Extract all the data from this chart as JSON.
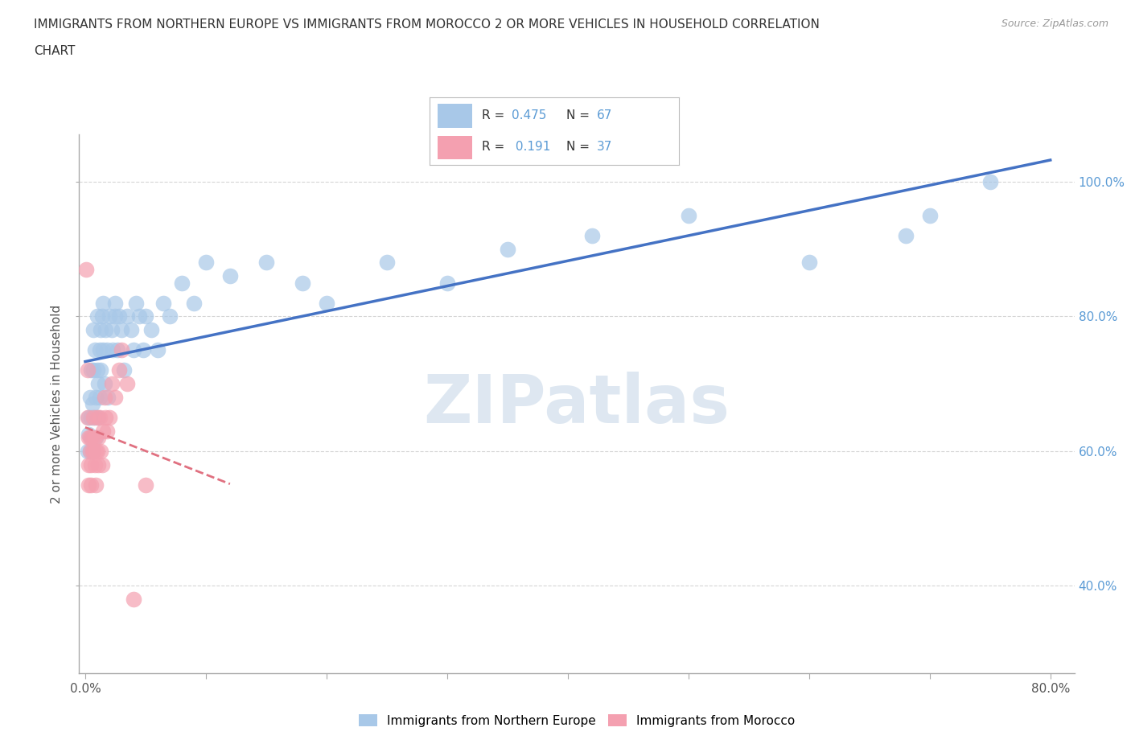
{
  "title_line1": "IMMIGRANTS FROM NORTHERN EUROPE VS IMMIGRANTS FROM MOROCCO 2 OR MORE VEHICLES IN HOUSEHOLD CORRELATION",
  "title_line2": "CHART",
  "source": "Source: ZipAtlas.com",
  "ylabel": "2 or more Vehicles in Household",
  "xlim": [
    -0.005,
    0.82
  ],
  "ylim": [
    0.27,
    1.07
  ],
  "x_tick_positions": [
    0.0,
    0.1,
    0.2,
    0.3,
    0.4,
    0.5,
    0.6,
    0.7,
    0.8
  ],
  "x_tick_labels": [
    "0.0%",
    "",
    "",
    "",
    "",
    "",
    "",
    "",
    "80.0%"
  ],
  "y_tick_positions": [
    0.4,
    0.6,
    0.8,
    1.0
  ],
  "y_tick_labels": [
    "40.0%",
    "60.0%",
    "80.0%",
    "100.0%"
  ],
  "watermark": "ZIPatlas",
  "color_blue": "#a8c8e8",
  "color_pink": "#f4a0b0",
  "line_blue": "#4472c4",
  "line_pink": "#e07080",
  "ne_x": [
    0.002,
    0.003,
    0.003,
    0.004,
    0.004,
    0.005,
    0.005,
    0.005,
    0.006,
    0.006,
    0.007,
    0.007,
    0.008,
    0.008,
    0.009,
    0.009,
    0.01,
    0.01,
    0.011,
    0.011,
    0.012,
    0.012,
    0.013,
    0.013,
    0.014,
    0.015,
    0.015,
    0.016,
    0.017,
    0.018,
    0.019,
    0.02,
    0.022,
    0.023,
    0.025,
    0.025,
    0.027,
    0.028,
    0.03,
    0.032,
    0.035,
    0.038,
    0.04,
    0.042,
    0.045,
    0.048,
    0.05,
    0.055,
    0.06,
    0.065,
    0.07,
    0.08,
    0.09,
    0.1,
    0.12,
    0.15,
    0.18,
    0.2,
    0.25,
    0.3,
    0.35,
    0.42,
    0.5,
    0.6,
    0.68,
    0.7,
    0.75
  ],
  "ne_y": [
    0.6,
    0.65,
    0.625,
    0.6,
    0.68,
    0.62,
    0.65,
    0.72,
    0.6,
    0.67,
    0.78,
    0.72,
    0.65,
    0.75,
    0.68,
    0.62,
    0.8,
    0.72,
    0.7,
    0.65,
    0.75,
    0.68,
    0.78,
    0.72,
    0.8,
    0.75,
    0.82,
    0.7,
    0.78,
    0.75,
    0.68,
    0.8,
    0.78,
    0.75,
    0.82,
    0.8,
    0.75,
    0.8,
    0.78,
    0.72,
    0.8,
    0.78,
    0.75,
    0.82,
    0.8,
    0.75,
    0.8,
    0.78,
    0.75,
    0.82,
    0.8,
    0.85,
    0.82,
    0.88,
    0.86,
    0.88,
    0.85,
    0.82,
    0.88,
    0.85,
    0.9,
    0.92,
    0.95,
    0.88,
    0.92,
    0.95,
    1.0
  ],
  "mo_x": [
    0.001,
    0.002,
    0.002,
    0.003,
    0.003,
    0.003,
    0.004,
    0.004,
    0.005,
    0.005,
    0.006,
    0.006,
    0.007,
    0.007,
    0.008,
    0.008,
    0.009,
    0.009,
    0.01,
    0.01,
    0.011,
    0.011,
    0.012,
    0.013,
    0.014,
    0.015,
    0.016,
    0.017,
    0.018,
    0.02,
    0.022,
    0.025,
    0.028,
    0.03,
    0.035,
    0.04,
    0.05
  ],
  "mo_y": [
    0.87,
    0.65,
    0.72,
    0.62,
    0.58,
    0.55,
    0.62,
    0.6,
    0.55,
    0.58,
    0.62,
    0.6,
    0.65,
    0.6,
    0.58,
    0.62,
    0.55,
    0.6,
    0.65,
    0.6,
    0.58,
    0.62,
    0.65,
    0.6,
    0.58,
    0.63,
    0.68,
    0.65,
    0.63,
    0.65,
    0.7,
    0.68,
    0.72,
    0.75,
    0.7,
    0.38,
    0.55
  ]
}
